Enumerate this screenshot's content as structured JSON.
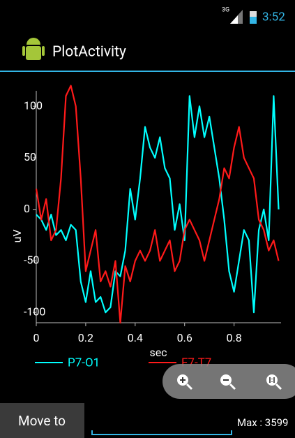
{
  "status_bar": {
    "network": "3G",
    "time": "3:52"
  },
  "app_bar": {
    "title": "PlotActivity"
  },
  "chart_data": {
    "type": "line",
    "x_label": "sec",
    "y_label": "uV",
    "x": [
      0,
      0.02,
      0.04,
      0.06,
      0.08,
      0.1,
      0.12,
      0.14,
      0.16,
      0.18,
      0.2,
      0.22,
      0.24,
      0.26,
      0.28,
      0.3,
      0.32,
      0.34,
      0.36,
      0.38,
      0.4,
      0.42,
      0.44,
      0.46,
      0.48,
      0.5,
      0.52,
      0.54,
      0.56,
      0.58,
      0.6,
      0.62,
      0.64,
      0.66,
      0.68,
      0.7,
      0.72,
      0.74,
      0.76,
      0.78,
      0.8,
      0.82,
      0.84,
      0.86,
      0.88,
      0.9,
      0.92,
      0.94,
      0.96,
      0.98
    ],
    "series": [
      {
        "name": "P7-O1",
        "color": "#00ffff",
        "values": [
          -5,
          -10,
          -20,
          -5,
          -25,
          -20,
          -30,
          -15,
          -20,
          -70,
          -90,
          -60,
          -90,
          -85,
          -100,
          -95,
          -60,
          -65,
          -40,
          20,
          -10,
          30,
          80,
          60,
          50,
          70,
          40,
          30,
          -20,
          5,
          -30,
          110,
          70,
          100,
          70,
          90,
          60,
          30,
          -10,
          -60,
          -80,
          -50,
          -20,
          -30,
          -100,
          -20,
          0,
          -30,
          110,
          0
        ]
      },
      {
        "name": "F7-T7",
        "color": "#ff1a1a",
        "values": [
          20,
          -10,
          10,
          -30,
          -20,
          30,
          110,
          120,
          100,
          30,
          -60,
          -40,
          -20,
          -70,
          -60,
          -75,
          -50,
          -110,
          -55,
          -70,
          -50,
          -40,
          -50,
          -40,
          -20,
          -50,
          -40,
          -30,
          -60,
          -50,
          -20,
          -10,
          -20,
          -30,
          -50,
          -30,
          -10,
          10,
          40,
          30,
          60,
          80,
          50,
          40,
          30,
          -10,
          -20,
          -40,
          -30,
          -50
        ]
      }
    ],
    "xlim": [
      0,
      0.99
    ],
    "ylim": [
      -110,
      115
    ],
    "xticks": [
      0,
      0.2,
      0.4,
      0.6,
      0.8
    ],
    "yticks": [
      -100,
      -50,
      0,
      50,
      100
    ],
    "grid": false
  },
  "controls": {
    "button": "Move to",
    "max_label": "Max : 3599"
  }
}
